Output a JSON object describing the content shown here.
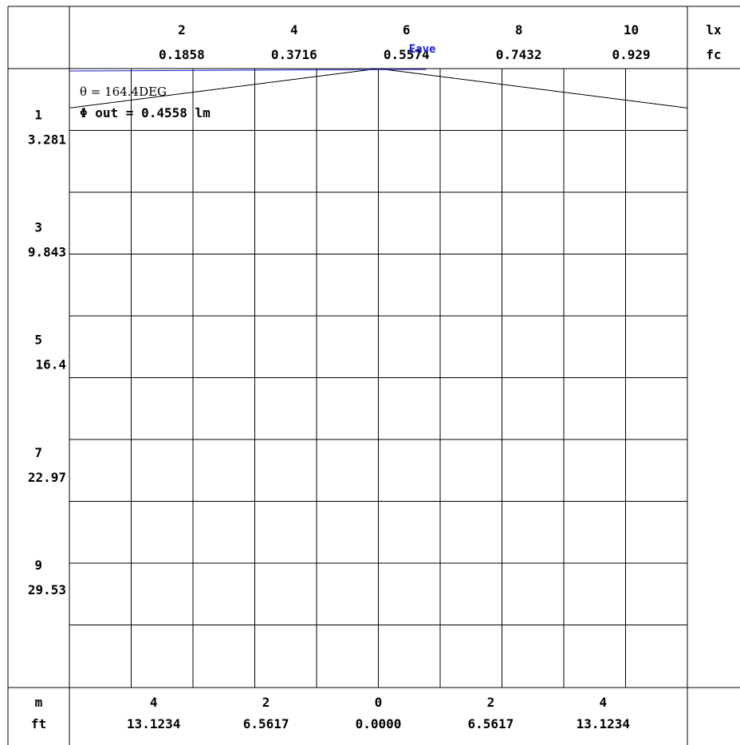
{
  "chart_data": {
    "type": "line",
    "title": "",
    "top_axis": {
      "lux_values": [
        "2",
        "4",
        "6",
        "8",
        "10"
      ],
      "fc_values": [
        "0.1858",
        "0.3716",
        "0.5574",
        "0.7432",
        "0.929"
      ],
      "unit_lx": "lx",
      "unit_fc": "fc",
      "range_lx": [
        0,
        11
      ]
    },
    "left_axis": {
      "m_values": [
        "1",
        "3",
        "5",
        "7",
        "9"
      ],
      "ft_values": [
        "3.281",
        "9.843",
        "16.4",
        "22.97",
        "29.53"
      ],
      "range_m": [
        0,
        11
      ]
    },
    "bottom_axis": {
      "m_values": [
        "4",
        "2",
        "0",
        "2",
        "4"
      ],
      "ft_values": [
        "13.1234",
        "6.5617",
        "0.0000",
        "6.5617",
        "13.1234"
      ],
      "unit_m": "m",
      "unit_ft": "ft",
      "range_m": [
        -5.5,
        5.5
      ]
    },
    "annotations": {
      "theta": "θ = 164.4DEG",
      "flux": "Φ out = 0.4558 lm",
      "eave_label": "Eave"
    },
    "beam_outline": {
      "x_m": [
        -5.5,
        0,
        5.5
      ],
      "depth_m": [
        0.7,
        0,
        0.7
      ]
    },
    "eave_line": {
      "x_m": [
        -5.5,
        0.85
      ],
      "lux": 6.0
    },
    "grid": true,
    "colors": {
      "eave": "#1f1fd0",
      "grid": "#000000"
    }
  }
}
